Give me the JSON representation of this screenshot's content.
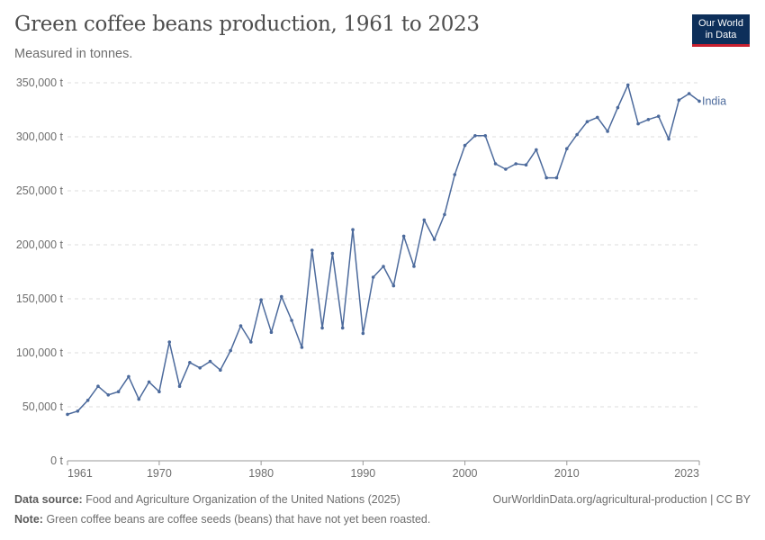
{
  "header": {
    "title": "Green coffee beans production, 1961 to 2023",
    "subtitle": "Measured in tonnes.",
    "logo_line1": "Our World",
    "logo_line2": "in Data"
  },
  "footer": {
    "source_label": "Data source:",
    "source_text": "Food and Agriculture Organization of the United Nations (2025)",
    "note_label": "Note:",
    "note_text": "Green coffee beans are coffee seeds (beans) that have not yet been roasted.",
    "right_text": "OurWorldinData.org/agricultural-production | CC BY"
  },
  "colors": {
    "series": "#4c6a9c",
    "logo_bg": "#0d2f5a",
    "logo_accent": "#c8202f"
  },
  "chart_data": {
    "type": "line",
    "title": "Green coffee beans production, 1961 to 2023",
    "subtitle": "Measured in tonnes.",
    "xlabel": "",
    "ylabel": "",
    "xlim": [
      1961,
      2023
    ],
    "ylim": [
      0,
      350000
    ],
    "x_ticks": [
      "1961",
      "1970",
      "1980",
      "1990",
      "2000",
      "2010",
      "2023"
    ],
    "y_ticks": [
      "0 t",
      "50,000 t",
      "100,000 t",
      "150,000 t",
      "200,000 t",
      "250,000 t",
      "300,000 t",
      "350,000 t"
    ],
    "y_tick_values": [
      0,
      50000,
      100000,
      150000,
      200000,
      250000,
      300000,
      350000
    ],
    "x_tick_values": [
      1961,
      1970,
      1980,
      1990,
      2000,
      2010,
      2023
    ],
    "grid": "horizontal dashed",
    "legend": "end-of-line label",
    "series": [
      {
        "name": "India",
        "x": [
          1961,
          1962,
          1963,
          1964,
          1965,
          1966,
          1967,
          1968,
          1969,
          1970,
          1971,
          1972,
          1973,
          1974,
          1975,
          1976,
          1977,
          1978,
          1979,
          1980,
          1981,
          1982,
          1983,
          1984,
          1985,
          1986,
          1987,
          1988,
          1989,
          1990,
          1991,
          1992,
          1993,
          1994,
          1995,
          1996,
          1997,
          1998,
          1999,
          2000,
          2001,
          2002,
          2003,
          2004,
          2005,
          2006,
          2007,
          2008,
          2009,
          2010,
          2011,
          2012,
          2013,
          2014,
          2015,
          2016,
          2017,
          2018,
          2019,
          2020,
          2021,
          2022,
          2023
        ],
        "values": [
          43000,
          46000,
          56000,
          69000,
          61000,
          64000,
          78000,
          57000,
          73000,
          64000,
          110000,
          69000,
          91000,
          86000,
          92000,
          84000,
          102000,
          125000,
          110000,
          149000,
          119000,
          152000,
          130000,
          105000,
          195000,
          123000,
          192000,
          123000,
          214000,
          118000,
          170000,
          180000,
          162000,
          208000,
          180000,
          223000,
          205000,
          228000,
          265000,
          292000,
          301000,
          301000,
          275000,
          270000,
          275000,
          274000,
          288000,
          262000,
          262000,
          289000,
          302000,
          314000,
          318000,
          305000,
          327000,
          348000,
          312000,
          316000,
          319000,
          298000,
          334000,
          340000,
          333000
        ]
      }
    ]
  }
}
